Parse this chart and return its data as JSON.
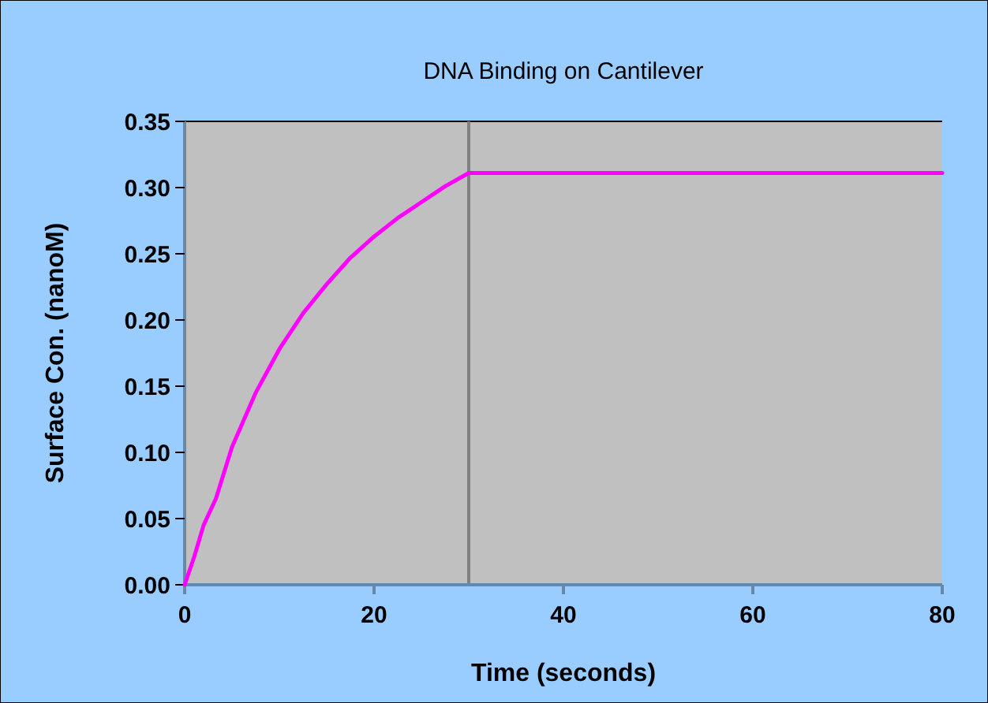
{
  "chart_data": {
    "type": "line",
    "title": "DNA Binding on Cantilever",
    "xlabel": "Time (seconds)",
    "ylabel": "Surface Con. (nanoM)",
    "x": [
      0,
      1,
      2,
      3.3,
      5,
      7.5,
      10,
      12.5,
      15,
      17.5,
      20,
      22.5,
      25,
      27.5,
      30,
      80
    ],
    "series": [
      {
        "color": "#ff00ff",
        "values": [
          0,
          0.021,
          0.045,
          0.065,
          0.104,
          0.145,
          0.178,
          0.205,
          0.227,
          0.247,
          0.263,
          0.277,
          0.289,
          0.301,
          0.311,
          0.311
        ]
      }
    ],
    "xlim": [
      0,
      80
    ],
    "xticks": [
      0,
      20,
      40,
      60,
      80
    ],
    "ylim": [
      0,
      0.35
    ],
    "yticks": [
      {
        "value": 0,
        "label": "0.00"
      },
      {
        "value": 0.05,
        "label": "0.05"
      },
      {
        "value": 0.1,
        "label": "0.10"
      },
      {
        "value": 0.15,
        "label": "0.15"
      },
      {
        "value": 0.2,
        "label": "0.20"
      },
      {
        "value": 0.25,
        "label": "0.25"
      },
      {
        "value": 0.3,
        "label": "0.30"
      },
      {
        "value": 0.35,
        "label": "0.35"
      }
    ],
    "ref_lines": [
      {
        "axis": "x",
        "value": 30,
        "color": "#808080"
      }
    ],
    "grid": false,
    "marker": "none",
    "line_style": "solid"
  }
}
